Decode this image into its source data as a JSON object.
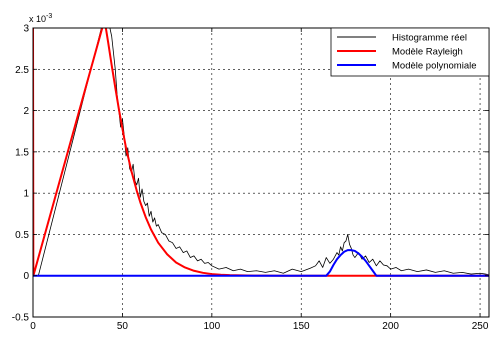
{
  "chart_data": {
    "type": "line",
    "title": "",
    "xlabel": "",
    "ylabel": "",
    "xlim": [
      0,
      255
    ],
    "ylim": [
      -0.0005,
      0.003
    ],
    "y_exponent_label": "x 10",
    "y_exponent_power": "-3",
    "grid": true,
    "legend_placement": "top-right",
    "x_ticks": [
      {
        "value": 0,
        "label": "0"
      },
      {
        "value": 50,
        "label": "50"
      },
      {
        "value": 100,
        "label": "100"
      },
      {
        "value": 150,
        "label": "150"
      },
      {
        "value": 200,
        "label": "200"
      },
      {
        "value": 250,
        "label": "250"
      }
    ],
    "y_ticks": [
      {
        "value": -0.0005,
        "label": "-0.5"
      },
      {
        "value": 0,
        "label": "0"
      },
      {
        "value": 0.0005,
        "label": "0.5"
      },
      {
        "value": 0.001,
        "label": "1"
      },
      {
        "value": 0.0015,
        "label": "1.5"
      },
      {
        "value": 0.002,
        "label": "2"
      },
      {
        "value": 0.0025,
        "label": "2.5"
      },
      {
        "value": 0.003,
        "label": "3"
      }
    ],
    "series": [
      {
        "name": "Histogramme réel",
        "color": "#000000",
        "x": [
          0,
          1,
          2,
          3,
          40,
          42,
          44,
          46,
          47,
          48,
          49,
          50,
          51,
          52,
          53,
          54,
          55,
          56,
          57,
          58,
          59,
          60,
          61,
          62,
          63,
          64,
          65,
          66,
          67,
          68,
          69,
          70,
          72,
          74,
          76,
          78,
          80,
          82,
          84,
          86,
          88,
          90,
          92,
          94,
          96,
          98,
          100,
          104,
          108,
          112,
          116,
          120,
          125,
          130,
          135,
          140,
          145,
          150,
          155,
          158,
          160,
          162,
          164,
          166,
          168,
          170,
          171,
          172,
          173,
          174,
          175,
          176,
          177,
          178,
          179,
          180,
          182,
          184,
          186,
          188,
          190,
          192,
          194,
          196,
          198,
          200,
          203,
          206,
          210,
          215,
          220,
          225,
          230,
          235,
          240,
          245,
          250,
          253,
          255
        ],
        "y": [
          0,
          0,
          0,
          0,
          0.00315,
          0.0031,
          0.0029,
          0.0025,
          0.0022,
          0.002,
          0.0018,
          0.0019,
          0.0017,
          0.00145,
          0.00155,
          0.0013,
          0.00125,
          0.00135,
          0.00115,
          0.0011,
          0.00118,
          0.00095,
          0.00105,
          0.0009,
          0.00085,
          0.00088,
          0.00072,
          0.00078,
          0.00065,
          0.0007,
          0.0006,
          0.00062,
          0.00052,
          0.0005,
          0.00042,
          0.0004,
          0.00033,
          0.00035,
          0.00028,
          0.0003,
          0.00022,
          0.00024,
          0.00018,
          0.0002,
          0.00015,
          0.00016,
          0.00012,
          8e-05,
          0.0001,
          6e-05,
          8e-05,
          5e-05,
          6e-05,
          4e-05,
          6e-05,
          3e-05,
          8e-05,
          5e-05,
          9e-05,
          0.00012,
          0.00018,
          0.0001,
          0.00022,
          0.00015,
          0.0002,
          0.00028,
          0.00025,
          0.00035,
          0.0003,
          0.0004,
          0.00042,
          0.0005,
          0.00038,
          0.00033,
          0.00025,
          0.00022,
          0.00028,
          0.0002,
          0.00024,
          0.00016,
          0.0002,
          0.00012,
          0.00018,
          0.00013,
          0.00012,
          8e-05,
          0.0001,
          6e-05,
          8e-05,
          5e-05,
          7e-05,
          4e-05,
          6e-05,
          3e-05,
          4e-05,
          2e-05,
          3e-05,
          2e-05,
          1e-05
        ]
      },
      {
        "name": "Modèle Rayleigh",
        "color": "#ff0000",
        "x": [
          0,
          0.2,
          40,
          42,
          44,
          46,
          48,
          50,
          52,
          55,
          58,
          60,
          63,
          66,
          70,
          75,
          80,
          85,
          90,
          95,
          100,
          105,
          110,
          120,
          130,
          140,
          150,
          160,
          165,
          190,
          255
        ],
        "y": [
          0.003,
          0,
          0.0031,
          0.00283,
          0.00255,
          0.00228,
          0.00202,
          0.00178,
          0.00155,
          0.00127,
          0.00103,
          0.00089,
          0.00071,
          0.00056,
          0.0004,
          0.00026,
          0.00016,
          0.0001,
          6e-05,
          3.5e-05,
          2e-05,
          1.2e-05,
          7e-06,
          2e-06,
          5e-07,
          0,
          0,
          0,
          0,
          0,
          0
        ]
      },
      {
        "name": "Modèle polynomiale",
        "color": "#0000ff",
        "x": [
          0,
          164,
          166,
          168,
          170,
          172,
          174,
          176,
          178,
          180,
          182,
          184,
          186,
          188,
          190,
          192,
          255
        ],
        "y": [
          0,
          0,
          5e-05,
          0.00013,
          0.0002,
          0.00025,
          0.00029,
          0.00031,
          0.00031,
          0.0003,
          0.00027,
          0.00023,
          0.00018,
          0.00012,
          6e-05,
          0,
          0
        ]
      }
    ]
  }
}
